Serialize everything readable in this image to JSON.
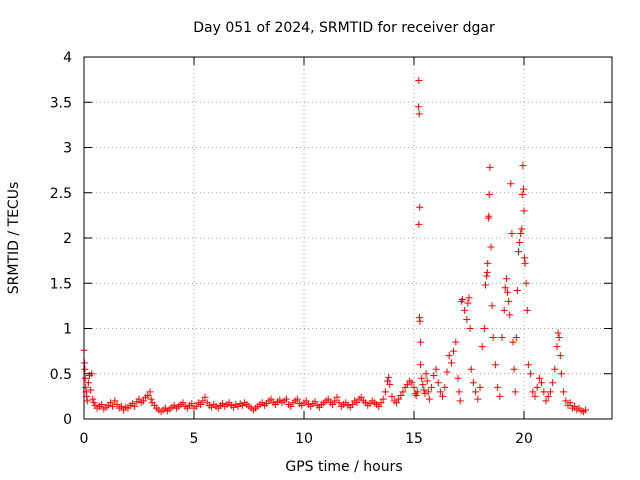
{
  "chart_data": {
    "type": "scatter",
    "title": "Day 051 of 2024, SRMTID for receiver dgar",
    "xlabel": "GPS time / hours",
    "ylabel": "SRMTID / TECUs",
    "xlim": [
      0,
      24
    ],
    "ylim": [
      0,
      4
    ],
    "xticks": [
      0,
      5,
      10,
      15,
      20
    ],
    "xtick_labels": [
      "0",
      "5",
      "10",
      "15",
      "20"
    ],
    "yticks": [
      0,
      0.5,
      1,
      1.5,
      2,
      2.5,
      3,
      3.5,
      4
    ],
    "ytick_labels": [
      "0",
      "0.5",
      "1",
      "1.5",
      "2",
      "2.5",
      "3",
      "3.5",
      "4"
    ],
    "grid": true,
    "marker": "+",
    "marker_color": "#ff0000",
    "series": [
      {
        "name": "dgar",
        "points": [
          [
            0.0,
            0.76
          ],
          [
            0.02,
            0.62
          ],
          [
            0.04,
            0.55
          ],
          [
            0.06,
            0.45
          ],
          [
            0.08,
            0.35
          ],
          [
            0.1,
            0.3
          ],
          [
            0.12,
            0.25
          ],
          [
            0.15,
            0.2
          ],
          [
            0.2,
            0.4
          ],
          [
            0.25,
            0.48
          ],
          [
            0.3,
            0.32
          ],
          [
            0.35,
            0.5
          ],
          [
            0.4,
            0.22
          ],
          [
            0.45,
            0.18
          ],
          [
            0.5,
            0.15
          ],
          [
            0.6,
            0.12
          ],
          [
            0.7,
            0.14
          ],
          [
            0.8,
            0.16
          ],
          [
            0.9,
            0.11
          ],
          [
            1.0,
            0.13
          ],
          [
            1.1,
            0.15
          ],
          [
            1.2,
            0.18
          ],
          [
            1.3,
            0.14
          ],
          [
            1.4,
            0.2
          ],
          [
            1.5,
            0.16
          ],
          [
            1.6,
            0.12
          ],
          [
            1.7,
            0.14
          ],
          [
            1.8,
            0.1
          ],
          [
            1.9,
            0.13
          ],
          [
            2.0,
            0.12
          ],
          [
            2.1,
            0.15
          ],
          [
            2.2,
            0.17
          ],
          [
            2.3,
            0.14
          ],
          [
            2.4,
            0.19
          ],
          [
            2.5,
            0.22
          ],
          [
            2.6,
            0.18
          ],
          [
            2.7,
            0.2
          ],
          [
            2.8,
            0.24
          ],
          [
            2.9,
            0.26
          ],
          [
            3.0,
            0.3
          ],
          [
            3.05,
            0.22
          ],
          [
            3.1,
            0.18
          ],
          [
            3.2,
            0.15
          ],
          [
            3.3,
            0.12
          ],
          [
            3.4,
            0.1
          ],
          [
            3.5,
            0.08
          ],
          [
            3.6,
            0.1
          ],
          [
            3.7,
            0.12
          ],
          [
            3.8,
            0.09
          ],
          [
            3.9,
            0.11
          ],
          [
            4.0,
            0.13
          ],
          [
            4.1,
            0.15
          ],
          [
            4.2,
            0.12
          ],
          [
            4.3,
            0.14
          ],
          [
            4.4,
            0.16
          ],
          [
            4.5,
            0.18
          ],
          [
            4.6,
            0.14
          ],
          [
            4.7,
            0.12
          ],
          [
            4.8,
            0.15
          ],
          [
            4.9,
            0.17
          ],
          [
            5.0,
            0.12
          ],
          [
            5.1,
            0.14
          ],
          [
            5.2,
            0.18
          ],
          [
            5.3,
            0.16
          ],
          [
            5.4,
            0.2
          ],
          [
            5.5,
            0.24
          ],
          [
            5.6,
            0.18
          ],
          [
            5.7,
            0.15
          ],
          [
            5.8,
            0.13
          ],
          [
            5.9,
            0.16
          ],
          [
            6.0,
            0.14
          ],
          [
            6.1,
            0.12
          ],
          [
            6.2,
            0.15
          ],
          [
            6.3,
            0.17
          ],
          [
            6.4,
            0.14
          ],
          [
            6.5,
            0.16
          ],
          [
            6.6,
            0.18
          ],
          [
            6.7,
            0.15
          ],
          [
            6.8,
            0.13
          ],
          [
            6.9,
            0.16
          ],
          [
            7.0,
            0.14
          ],
          [
            7.1,
            0.17
          ],
          [
            7.2,
            0.15
          ],
          [
            7.3,
            0.18
          ],
          [
            7.4,
            0.16
          ],
          [
            7.5,
            0.14
          ],
          [
            7.6,
            0.12
          ],
          [
            7.7,
            0.1
          ],
          [
            7.8,
            0.12
          ],
          [
            7.9,
            0.14
          ],
          [
            8.0,
            0.16
          ],
          [
            8.1,
            0.18
          ],
          [
            8.2,
            0.15
          ],
          [
            8.3,
            0.17
          ],
          [
            8.4,
            0.2
          ],
          [
            8.5,
            0.22
          ],
          [
            8.6,
            0.18
          ],
          [
            8.7,
            0.16
          ],
          [
            8.8,
            0.19
          ],
          [
            8.9,
            0.21
          ],
          [
            9.0,
            0.18
          ],
          [
            9.1,
            0.2
          ],
          [
            9.2,
            0.22
          ],
          [
            9.3,
            0.16
          ],
          [
            9.4,
            0.14
          ],
          [
            9.5,
            0.18
          ],
          [
            9.6,
            0.2
          ],
          [
            9.7,
            0.22
          ],
          [
            9.8,
            0.17
          ],
          [
            9.9,
            0.15
          ],
          [
            10.0,
            0.18
          ],
          [
            10.1,
            0.2
          ],
          [
            10.2,
            0.16
          ],
          [
            10.3,
            0.14
          ],
          [
            10.4,
            0.17
          ],
          [
            10.5,
            0.19
          ],
          [
            10.6,
            0.15
          ],
          [
            10.7,
            0.13
          ],
          [
            10.8,
            0.16
          ],
          [
            10.9,
            0.18
          ],
          [
            11.0,
            0.2
          ],
          [
            11.1,
            0.22
          ],
          [
            11.2,
            0.18
          ],
          [
            11.3,
            0.16
          ],
          [
            11.4,
            0.2
          ],
          [
            11.5,
            0.24
          ],
          [
            11.6,
            0.18
          ],
          [
            11.7,
            0.14
          ],
          [
            11.8,
            0.16
          ],
          [
            11.9,
            0.18
          ],
          [
            12.0,
            0.15
          ],
          [
            12.1,
            0.13
          ],
          [
            12.2,
            0.16
          ],
          [
            12.3,
            0.2
          ],
          [
            12.4,
            0.18
          ],
          [
            12.5,
            0.22
          ],
          [
            12.6,
            0.24
          ],
          [
            12.7,
            0.2
          ],
          [
            12.8,
            0.18
          ],
          [
            12.9,
            0.15
          ],
          [
            13.0,
            0.17
          ],
          [
            13.1,
            0.2
          ],
          [
            13.2,
            0.18
          ],
          [
            13.3,
            0.16
          ],
          [
            13.4,
            0.14
          ],
          [
            13.5,
            0.18
          ],
          [
            13.6,
            0.22
          ],
          [
            13.7,
            0.3
          ],
          [
            13.8,
            0.42
          ],
          [
            13.85,
            0.46
          ],
          [
            13.9,
            0.38
          ],
          [
            14.0,
            0.25
          ],
          [
            14.1,
            0.2
          ],
          [
            14.2,
            0.18
          ],
          [
            14.3,
            0.22
          ],
          [
            14.4,
            0.26
          ],
          [
            14.5,
            0.3
          ],
          [
            14.6,
            0.35
          ],
          [
            14.7,
            0.38
          ],
          [
            14.8,
            0.42
          ],
          [
            14.9,
            0.4
          ],
          [
            15.0,
            0.35
          ],
          [
            15.05,
            0.28
          ],
          [
            15.1,
            0.26
          ],
          [
            15.15,
            0.3
          ],
          [
            15.2,
            3.45
          ],
          [
            15.22,
            3.74
          ],
          [
            15.24,
            3.37
          ],
          [
            15.26,
            2.34
          ],
          [
            15.22,
            2.15
          ],
          [
            15.25,
            1.12
          ],
          [
            15.27,
            1.08
          ],
          [
            15.3,
            0.85
          ],
          [
            15.3,
            0.6
          ],
          [
            15.35,
            0.45
          ],
          [
            15.4,
            0.38
          ],
          [
            15.45,
            0.32
          ],
          [
            15.5,
            0.28
          ],
          [
            15.55,
            0.5
          ],
          [
            15.6,
            0.42
          ],
          [
            15.65,
            0.3
          ],
          [
            15.7,
            0.22
          ],
          [
            15.8,
            0.35
          ],
          [
            15.9,
            0.48
          ],
          [
            16.0,
            0.55
          ],
          [
            16.1,
            0.4
          ],
          [
            16.2,
            0.3
          ],
          [
            16.3,
            0.25
          ],
          [
            16.4,
            0.35
          ],
          [
            16.5,
            0.52
          ],
          [
            16.6,
            0.7
          ],
          [
            16.7,
            0.62
          ],
          [
            16.8,
            0.75
          ],
          [
            16.9,
            0.85
          ],
          [
            17.0,
            0.45
          ],
          [
            17.05,
            0.3
          ],
          [
            17.1,
            0.2
          ],
          [
            17.15,
            1.3
          ],
          [
            17.2,
            1.32
          ],
          [
            17.3,
            1.2
          ],
          [
            17.4,
            1.1
          ],
          [
            17.5,
            1.34
          ],
          [
            17.45,
            1.28
          ],
          [
            17.55,
            1.0
          ],
          [
            17.6,
            0.55
          ],
          [
            17.7,
            0.4
          ],
          [
            17.8,
            0.3
          ],
          [
            17.9,
            0.22
          ],
          [
            18.0,
            0.35
          ],
          [
            18.1,
            0.8
          ],
          [
            18.2,
            1.0
          ],
          [
            18.25,
            1.48
          ],
          [
            18.3,
            1.58
          ],
          [
            18.33,
            1.62
          ],
          [
            18.35,
            1.72
          ],
          [
            18.4,
            2.24
          ],
          [
            18.38,
            2.22
          ],
          [
            18.42,
            2.48
          ],
          [
            18.45,
            2.78
          ],
          [
            18.5,
            1.9
          ],
          [
            18.55,
            1.25
          ],
          [
            18.6,
            0.9
          ],
          [
            18.7,
            0.6
          ],
          [
            18.8,
            0.35
          ],
          [
            18.9,
            0.25
          ],
          [
            19.0,
            0.9
          ],
          [
            19.1,
            1.2
          ],
          [
            19.15,
            1.45
          ],
          [
            19.2,
            1.55
          ],
          [
            19.25,
            1.4
          ],
          [
            19.3,
            1.3
          ],
          [
            19.35,
            1.15
          ],
          [
            19.4,
            2.6
          ],
          [
            19.45,
            2.05
          ],
          [
            19.5,
            0.85
          ],
          [
            19.55,
            0.55
          ],
          [
            19.6,
            0.3
          ],
          [
            19.65,
            0.9
          ],
          [
            19.7,
            1.42
          ],
          [
            19.75,
            1.85
          ],
          [
            19.8,
            1.95
          ],
          [
            19.85,
            2.05
          ],
          [
            19.9,
            2.1
          ],
          [
            19.92,
            2.48
          ],
          [
            19.95,
            2.8
          ],
          [
            19.98,
            2.54
          ],
          [
            20.0,
            2.3
          ],
          [
            20.02,
            1.78
          ],
          [
            20.05,
            1.72
          ],
          [
            20.1,
            1.5
          ],
          [
            20.15,
            1.2
          ],
          [
            20.2,
            0.6
          ],
          [
            20.3,
            0.5
          ],
          [
            20.4,
            0.3
          ],
          [
            20.5,
            0.25
          ],
          [
            20.6,
            0.35
          ],
          [
            20.7,
            0.45
          ],
          [
            20.8,
            0.4
          ],
          [
            20.9,
            0.3
          ],
          [
            21.0,
            0.2
          ],
          [
            21.1,
            0.25
          ],
          [
            21.2,
            0.3
          ],
          [
            21.3,
            0.4
          ],
          [
            21.4,
            0.55
          ],
          [
            21.5,
            0.8
          ],
          [
            21.55,
            0.95
          ],
          [
            21.6,
            0.9
          ],
          [
            21.65,
            0.7
          ],
          [
            21.7,
            0.5
          ],
          [
            21.8,
            0.3
          ],
          [
            21.9,
            0.2
          ],
          [
            22.0,
            0.15
          ],
          [
            22.1,
            0.18
          ],
          [
            22.2,
            0.12
          ],
          [
            22.3,
            0.14
          ],
          [
            22.4,
            0.1
          ],
          [
            22.5,
            0.12
          ],
          [
            22.6,
            0.09
          ],
          [
            22.7,
            0.08
          ],
          [
            22.8,
            0.1
          ]
        ]
      }
    ]
  }
}
